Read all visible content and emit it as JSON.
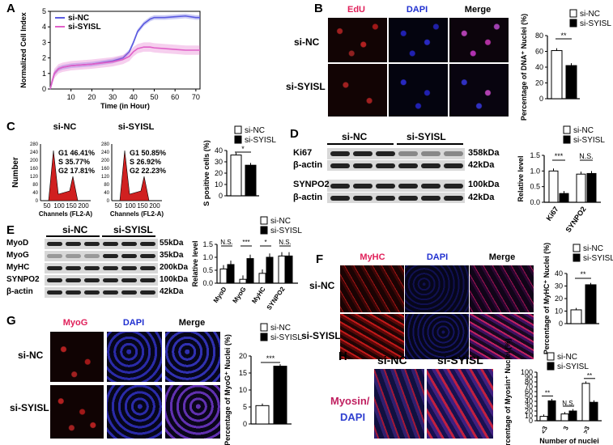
{
  "panels": {
    "A": {
      "label": "A",
      "legend": [
        "si-NC",
        "si-SYISL"
      ],
      "colors": {
        "si-NC": "#5a5ae0",
        "si-SYISL": "#e060c8"
      },
      "ylabel": "Normalized Cell Index",
      "xlabel": "Time (in Hour)",
      "yticks": [
        "0",
        "1",
        "2",
        "3",
        "4",
        "5"
      ],
      "xticks": [
        "10",
        "20",
        "30",
        "40",
        "50",
        "60",
        "70"
      ]
    },
    "B": {
      "label": "B",
      "cols": [
        "EdU",
        "DAPI",
        "Merge"
      ],
      "rows": [
        "si-NC",
        "si-SYISL"
      ],
      "legend": [
        "si-NC",
        "si-SYISL"
      ],
      "ylabel": "Percentage of DNA⁺ Nuclei (%)",
      "yticks": [
        "0",
        "20",
        "40",
        "60",
        "80"
      ],
      "sig": "**"
    },
    "C": {
      "label": "C",
      "hist_nc": {
        "title": "si-NC",
        "g1": "G1  46.41%",
        "s": "S  35.77%",
        "g2": "G2  17.81%"
      },
      "hist_sy": {
        "title": "si-SYISL",
        "g1": "G1  50.85%",
        "s": "S  26.92%",
        "g2": "G2  22.23%"
      },
      "ylabel": "Number",
      "xlabel": "Channels (FL2-A)",
      "yticks": [
        "0",
        "40",
        "80",
        "120",
        "160",
        "200",
        "240",
        "280"
      ],
      "xticks": [
        "50",
        "100",
        "150",
        "200"
      ],
      "legend": [
        "si-NC",
        "si-SYISL"
      ],
      "bar_ylabel": "S positive cells (%)",
      "bar_yticks": [
        "0",
        "10",
        "20",
        "30",
        "40"
      ],
      "sig": "*"
    },
    "D": {
      "label": "D",
      "groups": [
        "si-NC",
        "si-SYISL"
      ],
      "blots": [
        {
          "name": "Ki67",
          "size": "358kDa"
        },
        {
          "name": "β-actin",
          "size": "42kDa"
        },
        {
          "name": "SYNPO2",
          "size": "100kDa"
        },
        {
          "name": "β-actin",
          "size": "42kDa"
        }
      ],
      "legend": [
        "si-NC",
        "si-SYISL"
      ],
      "ylabel": "Relative level",
      "yticks": [
        "0.0",
        "0.5",
        "1.0",
        "1.5"
      ],
      "categories": [
        "Ki67",
        "SYNPO2"
      ],
      "sig": [
        "***",
        "N.S."
      ]
    },
    "E": {
      "label": "E",
      "groups": [
        "si-NC",
        "si-SYISL"
      ],
      "blots": [
        {
          "name": "MyoD",
          "size": "55kDa"
        },
        {
          "name": "MyoG",
          "size": "35kDa"
        },
        {
          "name": "MyHC",
          "size": "200kDa"
        },
        {
          "name": "SYNPO2",
          "size": "100kDa"
        },
        {
          "name": "β-actin",
          "size": "42kDa"
        }
      ],
      "legend": [
        "si-NC",
        "si-SYISL"
      ],
      "ylabel": "Relative level",
      "yticks": [
        "0.0",
        "0.5",
        "1.0",
        "1.5"
      ],
      "categories": [
        "MyoD",
        "MyoG",
        "MyHC",
        "SYNPO2"
      ],
      "sig": [
        "N.S.",
        "***",
        "*",
        "N.S."
      ]
    },
    "F": {
      "label": "F",
      "cols": [
        "MyHC",
        "DAPI",
        "Merge"
      ],
      "rows": [
        "si-NC",
        "si-SYISL"
      ],
      "legend": [
        "si-NC",
        "si-SYISL"
      ],
      "ylabel": "Percentage of MyHC⁺ Nuclei (%)",
      "yticks": [
        "0",
        "10",
        "20",
        "30",
        "40"
      ],
      "sig": "**"
    },
    "G": {
      "label": "G",
      "cols": [
        "MyoG",
        "DAPI",
        "Merge"
      ],
      "rows": [
        "si-NC",
        "si-SYISL"
      ],
      "legend": [
        "si-NC",
        "si-SYISL"
      ],
      "ylabel": "Percentage of MyoG⁺ Nuclei (%)",
      "yticks": [
        "0",
        "5",
        "10",
        "15",
        "20"
      ],
      "sig": "***"
    },
    "H": {
      "label": "H",
      "cols": [
        "si-NC",
        "si-SYISL"
      ],
      "side_label_1": "Myosin/",
      "side_label_2": "DAPI",
      "legend": [
        "si-NC",
        "si-SYISL"
      ],
      "ylabel": "Percentage of Myosin⁺ Nuclei (%)",
      "xlabel": "Number of nuclei",
      "yticks": [
        "0",
        "10",
        "20",
        "30",
        "40",
        "50",
        "60",
        "70",
        "80",
        "90",
        "100"
      ],
      "categories": [
        "<3",
        "3",
        ">3"
      ],
      "sig": [
        "**",
        "N.S.",
        "**"
      ]
    }
  },
  "chart_data": [
    {
      "type": "line",
      "panel": "A",
      "xlabel": "Time (in Hour)",
      "ylabel": "Normalized Cell Index",
      "xlim": [
        0,
        72
      ],
      "ylim": [
        0,
        5
      ],
      "series": [
        {
          "name": "si-NC",
          "x": [
            0,
            2,
            4,
            6,
            10,
            20,
            30,
            35,
            38,
            40,
            42,
            45,
            48,
            50,
            55,
            60,
            65,
            70,
            72
          ],
          "y": [
            0,
            1.0,
            1.3,
            1.4,
            1.5,
            1.6,
            1.8,
            2.0,
            2.4,
            3.0,
            3.7,
            4.2,
            4.5,
            4.6,
            4.6,
            4.65,
            4.7,
            4.6,
            4.6
          ]
        },
        {
          "name": "si-SYISL",
          "x": [
            0,
            2,
            4,
            6,
            10,
            20,
            30,
            35,
            38,
            40,
            42,
            45,
            48,
            50,
            55,
            60,
            65,
            70,
            72
          ],
          "y": [
            0,
            1.0,
            1.3,
            1.4,
            1.5,
            1.6,
            1.75,
            1.9,
            2.1,
            2.4,
            2.6,
            2.7,
            2.7,
            2.65,
            2.6,
            2.55,
            2.5,
            2.5,
            2.5
          ]
        }
      ]
    },
    {
      "type": "bar",
      "panel": "B",
      "categories": [
        "si-NC",
        "si-SYISL"
      ],
      "values": [
        61,
        42
      ],
      "ylim": [
        0,
        80
      ]
    },
    {
      "type": "bar",
      "panel": "C",
      "categories": [
        "si-NC",
        "si-SYISL"
      ],
      "values": [
        36,
        27
      ],
      "ylim": [
        0,
        40
      ]
    },
    {
      "type": "bar",
      "panel": "D",
      "categories": [
        "Ki67",
        "SYNPO2"
      ],
      "ylim": [
        0,
        1.5
      ],
      "series": [
        {
          "name": "si-NC",
          "values": [
            1.0,
            0.9
          ]
        },
        {
          "name": "si-SYISL",
          "values": [
            0.28,
            0.92
          ]
        }
      ]
    },
    {
      "type": "bar",
      "panel": "E",
      "categories": [
        "MyoD",
        "MyoG",
        "MyHC",
        "SYNPO2"
      ],
      "ylim": [
        0,
        1.5
      ],
      "series": [
        {
          "name": "si-NC",
          "values": [
            0.55,
            0.15,
            0.38,
            1.05
          ]
        },
        {
          "name": "si-SYISL",
          "values": [
            0.72,
            0.95,
            1.0,
            1.05
          ]
        }
      ]
    },
    {
      "type": "bar",
      "panel": "F",
      "categories": [
        "si-NC",
        "si-SYISL"
      ],
      "values": [
        11,
        31
      ],
      "ylim": [
        0,
        40
      ]
    },
    {
      "type": "bar",
      "panel": "G",
      "categories": [
        "si-NC",
        "si-SYISL"
      ],
      "values": [
        5.4,
        17
      ],
      "ylim": [
        0,
        20
      ]
    },
    {
      "type": "bar",
      "panel": "H",
      "categories": [
        "<3",
        "3",
        ">3"
      ],
      "ylim": [
        0,
        100
      ],
      "series": [
        {
          "name": "si-NC",
          "values": [
            9,
            14,
            77
          ]
        },
        {
          "name": "si-SYISL",
          "values": [
            41,
            20,
            38
          ]
        }
      ]
    }
  ]
}
